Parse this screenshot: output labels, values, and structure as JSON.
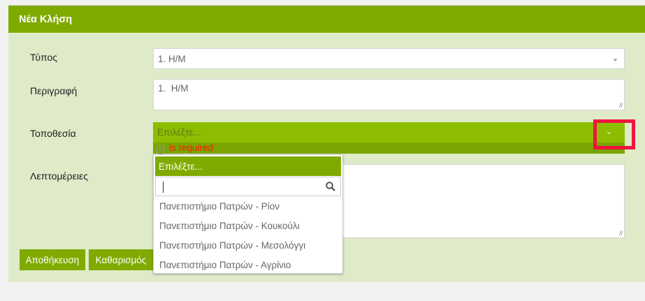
{
  "panel": {
    "title": "Νέα Κλήση"
  },
  "form": {
    "type": {
      "label": "Τύπος",
      "value": "1. Η/Μ"
    },
    "description": {
      "label": "Περιγραφή",
      "value": "1.  Η/Μ"
    },
    "location": {
      "label": "Τοποθεσία",
      "placeholder": "Επιλέξτε...",
      "error": "is required"
    },
    "details": {
      "label": "Λεπτομέρειες",
      "value": ""
    }
  },
  "dropdown": {
    "selected": "Επιλέξτε...",
    "search_value": "",
    "options": [
      "Πανεπιστήμιο Πατρών - Ρίον",
      "Πανεπιστήμιο Πατρών - Κουκούλι",
      "Πανεπιστήμιο Πατρών - Μεσολόγγι",
      "Πανεπιστήμιο Πατρών - Αγρίνιο"
    ]
  },
  "buttons": {
    "save": "Αποθήκευση",
    "clear": "Καθαρισμός"
  },
  "colors": {
    "header": "#7fab00",
    "invalid_field": "#8cbd00",
    "error_text": "#ff1a00",
    "highlight_box": "#f0143c"
  }
}
